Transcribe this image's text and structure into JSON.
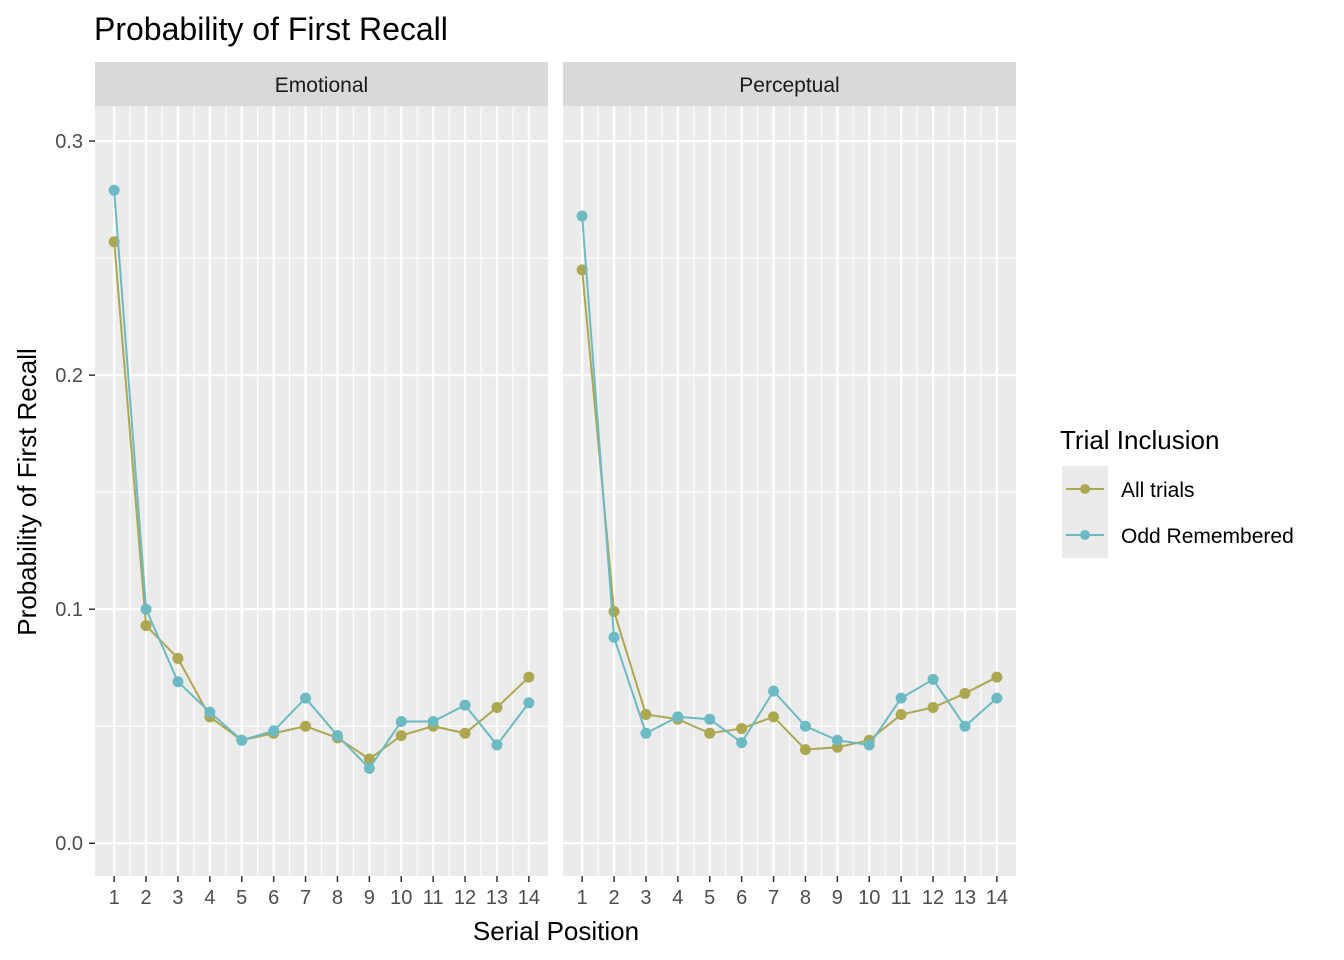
{
  "chart_data": {
    "type": "line",
    "title": "Probability of First Recall",
    "xlabel": "Serial Position",
    "ylabel": "Probability of First Recall",
    "x": [
      1,
      2,
      3,
      4,
      5,
      6,
      7,
      8,
      9,
      10,
      11,
      12,
      13,
      14
    ],
    "xlim": [
      0.4,
      14.6
    ],
    "ylim": [
      -0.014,
      0.315
    ],
    "yticks": [
      0.0,
      0.1,
      0.2,
      0.3
    ],
    "ytick_labels": [
      "0.0",
      "0.1",
      "0.2",
      "0.3"
    ],
    "xtick_labels": [
      "1",
      "2",
      "3",
      "4",
      "5",
      "6",
      "7",
      "8",
      "9",
      "10",
      "11",
      "12",
      "13",
      "14"
    ],
    "grid": true,
    "legend": {
      "title": "Trial Inclusion",
      "position": "right",
      "entries": [
        "All trials",
        "Odd Remembered"
      ]
    },
    "colors": {
      "All trials": "#ADA750",
      "Odd Remembered": "#6BBAC4",
      "panel_bg": "#EBEBEB",
      "strip_bg": "#D9D9D9",
      "grid": "#FFFFFF"
    },
    "facets": [
      {
        "label": "Emotional",
        "series": [
          {
            "name": "All trials",
            "values": [
              0.257,
              0.093,
              0.079,
              0.054,
              0.044,
              0.047,
              0.05,
              0.045,
              0.036,
              0.046,
              0.05,
              0.047,
              0.058,
              0.071
            ]
          },
          {
            "name": "Odd Remembered",
            "values": [
              0.279,
              0.1,
              0.069,
              0.056,
              0.044,
              0.048,
              0.062,
              0.046,
              0.032,
              0.052,
              0.052,
              0.059,
              0.042,
              0.06
            ]
          }
        ]
      },
      {
        "label": "Perceptual",
        "series": [
          {
            "name": "All trials",
            "values": [
              0.245,
              0.099,
              0.055,
              0.053,
              0.047,
              0.049,
              0.054,
              0.04,
              0.041,
              0.044,
              0.055,
              0.058,
              0.064,
              0.071
            ]
          },
          {
            "name": "Odd Remembered",
            "values": [
              0.268,
              0.088,
              0.047,
              0.054,
              0.053,
              0.043,
              0.065,
              0.05,
              0.044,
              0.042,
              0.062,
              0.07,
              0.05,
              0.062
            ]
          }
        ]
      }
    ]
  }
}
